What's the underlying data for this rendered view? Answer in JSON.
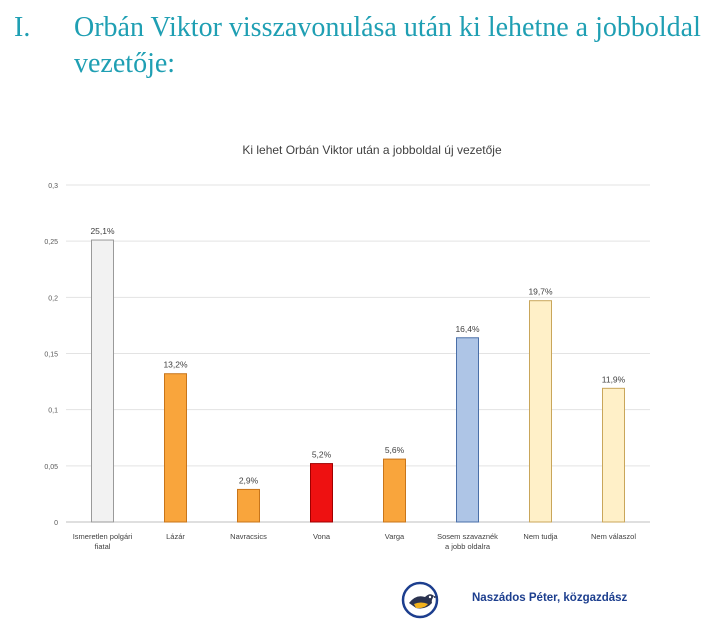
{
  "heading": {
    "number": "I.",
    "text": "Orbán Viktor visszavonulása után ki lehetne a jobboldal vezetője:"
  },
  "chart_data": {
    "type": "bar",
    "title": "Ki lehet Orbán Viktor után a jobboldal új vezetője",
    "xlabel": "",
    "ylabel": "",
    "ylim": [
      0,
      0.3
    ],
    "yticks": [
      0,
      0.05,
      0.1,
      0.15,
      0.2,
      0.25,
      0.3
    ],
    "ytick_labels": [
      "0",
      "0,05",
      "0,1",
      "0,15",
      "0,2",
      "0,25",
      "0,3"
    ],
    "grid": true,
    "categories": [
      [
        "Ismeretlen polgári",
        "fiatal"
      ],
      [
        "Lázár"
      ],
      [
        "Navracsics"
      ],
      [
        "Vona"
      ],
      [
        "Varga"
      ],
      [
        "Sosem szavaznék",
        "a jobb oldalra"
      ],
      [
        "Nem tudja"
      ],
      [
        "Nem válaszol"
      ]
    ],
    "values": [
      0.251,
      0.132,
      0.029,
      0.052,
      0.056,
      0.164,
      0.197,
      0.119
    ],
    "value_labels": [
      "25,1%",
      "13,2%",
      "2,9%",
      "5,2%",
      "5,6%",
      "16,4%",
      "19,7%",
      "11,9%"
    ],
    "colors": [
      "#f2f2f2",
      "#f9a53c",
      "#f9a53c",
      "#ee1111",
      "#f9a53c",
      "#aec5e6",
      "#fff0c8",
      "#fff0c8"
    ],
    "edge_colors": [
      "#9a9a9a",
      "#c8751a",
      "#c8751a",
      "#a00000",
      "#c8751a",
      "#4a6fa8",
      "#c9a65a",
      "#c9a65a"
    ]
  },
  "signature": {
    "text": "Naszádos Péter, közgazdász"
  },
  "logo": {
    "icon": "bird-logo-icon",
    "ring_color": "#1c3e8e"
  }
}
